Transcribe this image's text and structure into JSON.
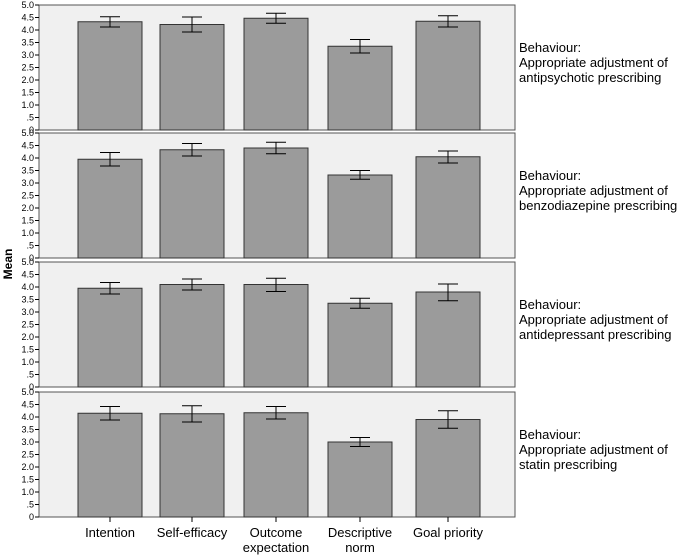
{
  "chart_data": {
    "type": "bar",
    "ylabel": "Mean",
    "ylim": [
      0,
      5
    ],
    "yticks": [
      "0",
      ".5",
      "1.0",
      "1.5",
      "2.0",
      "2.5",
      "3.0",
      "3.5",
      "4.0",
      "4.5",
      "5.0"
    ],
    "categories": [
      [
        "Intention"
      ],
      [
        "Self-efficacy"
      ],
      [
        "Outcome",
        "expectation"
      ],
      [
        "Descriptive",
        "norm"
      ],
      [
        "Goal priority"
      ]
    ],
    "colors": {
      "bar": "#9b9b9b",
      "panel_bg": "#f0f0f0",
      "frame": "#555555"
    },
    "panels": [
      {
        "label": [
          "Behaviour:",
          "Appropriate adjustment of",
          "antipsychotic prescribing"
        ],
        "values": [
          4.33,
          4.22,
          4.47,
          3.35,
          4.35
        ],
        "error_low": [
          4.12,
          3.92,
          4.27,
          3.08,
          4.12
        ],
        "error_high": [
          4.53,
          4.52,
          4.67,
          3.62,
          4.57
        ]
      },
      {
        "label": [
          "Behaviour:",
          "Appropriate adjustment of",
          "benzodiazepine prescribing"
        ],
        "values": [
          3.95,
          4.33,
          4.4,
          3.32,
          4.05
        ],
        "error_low": [
          3.68,
          4.08,
          4.17,
          3.15,
          3.8
        ],
        "error_high": [
          4.22,
          4.58,
          4.63,
          3.5,
          4.28
        ]
      },
      {
        "label": [
          "Behaviour:",
          "Appropriate adjustment of",
          "antidepressant prescribing"
        ],
        "values": [
          3.95,
          4.1,
          4.1,
          3.35,
          3.8
        ],
        "error_low": [
          3.72,
          3.88,
          3.82,
          3.15,
          3.45
        ],
        "error_high": [
          4.18,
          4.32,
          4.35,
          3.55,
          4.12
        ]
      },
      {
        "label": [
          "Behaviour:",
          "Appropriate adjustment of",
          "statin prescribing"
        ],
        "values": [
          4.15,
          4.13,
          4.17,
          3.0,
          3.9
        ],
        "error_low": [
          3.88,
          3.8,
          3.92,
          2.82,
          3.55
        ],
        "error_high": [
          4.42,
          4.45,
          4.42,
          3.18,
          4.25
        ]
      }
    ]
  }
}
